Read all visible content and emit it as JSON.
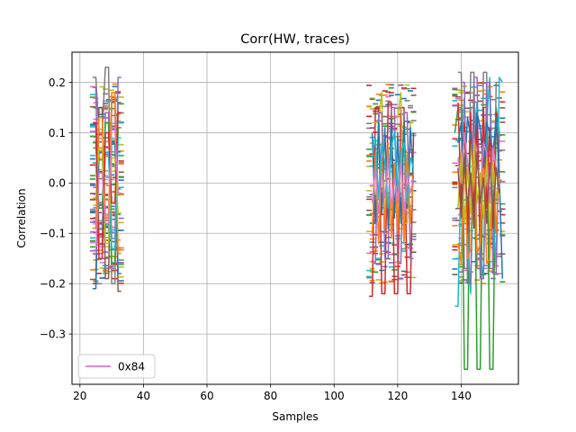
{
  "chart_data": {
    "type": "line",
    "title": "Corr(HW, traces)",
    "xlabel": "Samples",
    "ylabel": "Correlation",
    "xlim": [
      17.5,
      158
    ],
    "ylim": [
      -0.4,
      0.26
    ],
    "xticks": [
      20,
      40,
      60,
      80,
      100,
      120,
      140
    ],
    "yticks": [
      -0.3,
      -0.2,
      -0.1,
      0.0,
      0.1,
      0.2
    ],
    "ytick_labels": [
      "−0.3",
      "−0.2",
      "−0.1",
      "0.0",
      "0.1",
      "0.2"
    ],
    "grid": true,
    "legend_position": "lower-left",
    "legend": [
      {
        "label": "0x84",
        "color": "#e377c2"
      }
    ],
    "palette": [
      "#1f77b4",
      "#ff7f0e",
      "#2ca02c",
      "#d62728",
      "#9467bd",
      "#8c564b",
      "#e377c2",
      "#7f7f7f",
      "#bcbd22",
      "#17becf"
    ],
    "x_clusters": [
      [
        24,
        33
      ],
      [
        111,
        125
      ],
      [
        138,
        153
      ]
    ],
    "series": [
      {
        "color": "#2ca02c",
        "name": "",
        "x": [
          138,
          139,
          140,
          141,
          142,
          143,
          144,
          145,
          146,
          147,
          148,
          149,
          150,
          151,
          152
        ],
        "y": [
          0.1,
          0.15,
          0.15,
          -0.37,
          -0.37,
          0.15,
          0.15,
          -0.37,
          -0.37,
          0.15,
          0.15,
          -0.37,
          -0.37,
          0.15,
          0.1
        ]
      },
      {
        "color": "#17becf",
        "name": "",
        "x": [
          138,
          139,
          140,
          141,
          142,
          143,
          144,
          145,
          146,
          147,
          148,
          149,
          150,
          151,
          152,
          153
        ],
        "y": [
          -0.245,
          -0.245,
          0.05,
          0.17,
          -0.1,
          -0.22,
          0.09,
          0.16,
          -0.14,
          -0.19,
          0.12,
          0.21,
          -0.05,
          -0.17,
          0.21,
          0.2
        ]
      },
      {
        "color": "#7f7f7f",
        "name": "",
        "x": [
          139,
          140,
          141,
          142,
          143,
          144,
          145,
          146,
          147,
          148,
          149,
          150,
          151,
          152
        ],
        "y": [
          0.22,
          0.22,
          -0.17,
          -0.17,
          0.22,
          0.22,
          -0.17,
          -0.17,
          0.22,
          0.22,
          -0.17,
          -0.17,
          0.2,
          0.2
        ]
      },
      {
        "color": "#9467bd",
        "name": "",
        "x": [
          140,
          141,
          142,
          143,
          144,
          145,
          146,
          147,
          148,
          149,
          150,
          151,
          152
        ],
        "y": [
          0.2,
          0.2,
          -0.2,
          -0.2,
          0.21,
          0.21,
          -0.19,
          -0.19,
          0.2,
          0.2,
          -0.18,
          -0.18,
          0.1
        ]
      },
      {
        "color": "#d62728",
        "name": "",
        "x": [
          139,
          140,
          141,
          142,
          143,
          144,
          145,
          146,
          147,
          148,
          149,
          150,
          151,
          152
        ],
        "y": [
          0.16,
          -0.04,
          0.12,
          -0.1,
          0.14,
          -0.06,
          0.13,
          -0.12,
          0.15,
          -0.05,
          0.11,
          -0.09,
          0.14,
          0.02
        ]
      },
      {
        "color": "#ff7f0e",
        "name": "",
        "x": [
          139,
          140,
          141,
          142,
          143,
          144,
          145,
          146,
          147,
          148,
          149,
          150,
          151,
          152
        ],
        "y": [
          -0.12,
          -0.16,
          0.06,
          -0.15,
          -0.13,
          0.08,
          -0.14,
          -0.12,
          0.07,
          -0.16,
          -0.15,
          0.05,
          -0.1,
          0.04
        ]
      },
      {
        "color": "#1f77b4",
        "name": "",
        "x": [
          139,
          140,
          141,
          142,
          143,
          144,
          145,
          146,
          147,
          148,
          149,
          150,
          151,
          152,
          153
        ],
        "y": [
          0.08,
          0.12,
          0.02,
          0.13,
          0.09,
          0.05,
          0.14,
          0.11,
          0.03,
          0.12,
          0.1,
          0.06,
          0.13,
          0.01,
          -0.19
        ]
      },
      {
        "color": "#e377c2",
        "name": "0x84",
        "x": [
          139,
          140,
          141,
          142,
          143,
          144,
          145,
          146,
          147,
          148,
          149,
          150,
          151,
          152
        ],
        "y": [
          0.05,
          0.0,
          0.1,
          0.04,
          -0.03,
          0.09,
          0.05,
          -0.02,
          0.08,
          0.06,
          -0.04,
          0.07,
          0.03,
          -0.01
        ]
      },
      {
        "color": "#bcbd22",
        "name": "",
        "x": [
          139,
          140,
          141,
          142,
          143,
          144,
          145,
          146,
          147,
          148,
          149,
          150,
          151,
          152
        ],
        "y": [
          -0.05,
          0.06,
          -0.08,
          0.03,
          -0.06,
          0.08,
          -0.04,
          0.02,
          -0.07,
          0.05,
          -0.09,
          0.04,
          -0.03,
          0.01
        ]
      },
      {
        "color": "#8c564b",
        "name": "",
        "x": [
          139,
          140,
          141,
          142,
          143,
          144,
          145,
          146,
          147,
          148,
          149,
          150,
          151,
          152
        ],
        "y": [
          0.03,
          -0.07,
          0.05,
          -0.05,
          0.02,
          -0.09,
          0.06,
          -0.04,
          0.01,
          -0.08,
          0.04,
          -0.06,
          0.03,
          -0.02
        ]
      },
      {
        "color": "#d62728",
        "name": "",
        "x": [
          111,
          112,
          113,
          114,
          115,
          116,
          117,
          118,
          119,
          120,
          121,
          122,
          123,
          124,
          125
        ],
        "y": [
          -0.225,
          -0.225,
          0.15,
          0.15,
          -0.22,
          -0.22,
          0.16,
          0.16,
          -0.22,
          -0.22,
          0.15,
          0.15,
          -0.22,
          -0.22,
          0.1
        ]
      },
      {
        "color": "#bcbd22",
        "name": "",
        "x": [
          112,
          113,
          114,
          115,
          116,
          117,
          118,
          119,
          120,
          121,
          122,
          123,
          124,
          125
        ],
        "y": [
          0.12,
          0.12,
          0.12,
          0.18,
          -0.1,
          -0.1,
          0.13,
          0.13,
          0.13,
          0.18,
          -0.08,
          -0.08,
          0.12,
          0.12
        ]
      },
      {
        "color": "#9467bd",
        "name": "",
        "x": [
          112,
          113,
          114,
          115,
          116,
          117,
          118,
          119,
          120,
          121,
          122,
          123,
          124,
          125
        ],
        "y": [
          -0.16,
          -0.16,
          0.14,
          0.14,
          -0.15,
          -0.15,
          0.15,
          0.15,
          -0.16,
          -0.16,
          0.14,
          0.14,
          -0.15,
          -0.15
        ]
      },
      {
        "color": "#1f77b4",
        "name": "",
        "x": [
          112,
          113,
          114,
          115,
          116,
          117,
          118,
          119,
          120,
          121,
          122,
          123,
          124,
          125
        ],
        "y": [
          0.1,
          -0.08,
          0.12,
          -0.06,
          0.11,
          -0.09,
          0.13,
          -0.07,
          0.1,
          -0.08,
          0.12,
          -0.05,
          0.11,
          0.0
        ]
      },
      {
        "color": "#ff7f0e",
        "name": "",
        "x": [
          112,
          113,
          114,
          115,
          116,
          117,
          118,
          119,
          120,
          121,
          122,
          123,
          124,
          125
        ],
        "y": [
          -0.1,
          0.06,
          -0.12,
          0.05,
          -0.09,
          0.08,
          -0.11,
          0.04,
          -0.1,
          0.07,
          -0.12,
          0.06,
          -0.08,
          0.02
        ]
      },
      {
        "color": "#17becf",
        "name": "",
        "x": [
          112,
          113,
          114,
          115,
          116,
          117,
          118,
          119,
          120,
          121,
          122,
          123,
          124,
          125
        ],
        "y": [
          0.05,
          0.09,
          -0.03,
          0.08,
          0.04,
          -0.05,
          0.07,
          0.1,
          -0.02,
          0.06,
          0.08,
          -0.04,
          0.05,
          0.03
        ]
      },
      {
        "color": "#e377c2",
        "name": "",
        "x": [
          112,
          113,
          114,
          115,
          116,
          117,
          118,
          119,
          120,
          121,
          122,
          123,
          124,
          125
        ],
        "y": [
          -0.04,
          0.03,
          -0.06,
          0.02,
          -0.03,
          0.05,
          -0.05,
          0.01,
          -0.04,
          0.04,
          -0.06,
          0.02,
          -0.02,
          0.01
        ]
      },
      {
        "color": "#7f7f7f",
        "name": "",
        "x": [
          24,
          25,
          26,
          27,
          28,
          29,
          30,
          31,
          32,
          33
        ],
        "y": [
          0.21,
          0.21,
          0.1,
          0.1,
          0.23,
          0.23,
          -0.2,
          -0.2,
          0.16,
          0.16
        ]
      },
      {
        "color": "#8c564b",
        "name": "",
        "x": [
          24,
          25,
          26,
          27,
          28,
          29,
          30,
          31,
          32,
          33
        ],
        "y": [
          -0.2,
          -0.2,
          0.15,
          0.15,
          -0.19,
          -0.19,
          0.16,
          0.16,
          -0.215,
          -0.215
        ]
      },
      {
        "color": "#9467bd",
        "name": "",
        "x": [
          24,
          25,
          26,
          27,
          28,
          29,
          30,
          31,
          32,
          33
        ],
        "y": [
          0.19,
          0.19,
          -0.12,
          -0.12,
          0.14,
          0.14,
          -0.11,
          -0.11,
          0.21,
          0.21
        ]
      },
      {
        "color": "#1f77b4",
        "name": "",
        "x": [
          24,
          25,
          26,
          27,
          28,
          29,
          30,
          31,
          32,
          33
        ],
        "y": [
          -0.21,
          -0.21,
          0.06,
          0.06,
          -0.1,
          -0.1,
          0.08,
          0.08,
          -0.18,
          -0.18
        ]
      },
      {
        "color": "#2ca02c",
        "name": "",
        "x": [
          24,
          25,
          26,
          27,
          28,
          29,
          30,
          31,
          32,
          33
        ],
        "y": [
          0.08,
          0.08,
          -0.05,
          -0.05,
          0.12,
          0.12,
          -0.16,
          -0.16,
          0.11,
          0.11
        ]
      },
      {
        "color": "#ff7f0e",
        "name": "",
        "x": [
          24,
          25,
          26,
          27,
          28,
          29,
          30,
          31,
          32,
          33
        ],
        "y": [
          -0.09,
          -0.09,
          0.13,
          0.13,
          -0.07,
          -0.07,
          0.18,
          0.18,
          -0.14,
          -0.14
        ]
      },
      {
        "color": "#17becf",
        "name": "",
        "x": [
          24,
          25,
          26,
          27,
          28,
          29,
          30,
          31,
          32,
          33
        ],
        "y": [
          0.04,
          0.04,
          -0.09,
          -0.09,
          0.06,
          0.06,
          -0.13,
          -0.13,
          0.09,
          0.09
        ]
      },
      {
        "color": "#bcbd22",
        "name": "",
        "x": [
          24,
          25,
          26,
          27,
          28,
          29,
          30,
          31,
          32,
          33
        ],
        "y": [
          -0.03,
          -0.03,
          0.07,
          0.07,
          -0.12,
          -0.12,
          0.05,
          0.05,
          -0.06,
          -0.06
        ]
      },
      {
        "color": "#d62728",
        "name": "",
        "x": [
          24,
          25,
          26,
          27,
          28,
          29,
          30,
          31,
          32,
          33
        ],
        "y": [
          0.12,
          0.12,
          -0.15,
          -0.15,
          0.1,
          0.1,
          -0.04,
          -0.04,
          0.14,
          0.14
        ]
      },
      {
        "color": "#e377c2",
        "name": "",
        "x": [
          24,
          25,
          26,
          27,
          28,
          29,
          30,
          31,
          32,
          33
        ],
        "y": [
          -0.14,
          -0.14,
          0.02,
          0.02,
          -0.08,
          -0.08,
          0.11,
          0.11,
          -0.02,
          -0.02
        ]
      }
    ]
  }
}
